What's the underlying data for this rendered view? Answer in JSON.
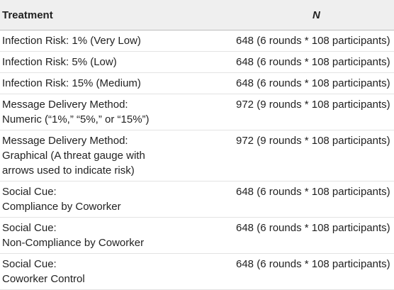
{
  "table": {
    "header": [
      "Treatment",
      "N"
    ],
    "rows": [
      {
        "treatment": [
          "Infection Risk: 1% (Very Low)"
        ],
        "n": "648 (6 rounds * 108 participants)"
      },
      {
        "treatment": [
          "Infection Risk: 5% (Low)"
        ],
        "n": "648 (6 rounds * 108 participants)"
      },
      {
        "treatment": [
          "Infection Risk: 15% (Medium)"
        ],
        "n": "648 (6 rounds * 108 participants)"
      },
      {
        "treatment": [
          "Message Delivery Method:",
          "Numeric (“1%,” “5%,” or “15%”)"
        ],
        "n": "972 (9 rounds * 108 participants)"
      },
      {
        "treatment": [
          "Message Delivery Method:",
          "Graphical (A threat gauge with",
          "arrows used to indicate risk)"
        ],
        "n": "972 (9 rounds * 108 participants)"
      },
      {
        "treatment": [
          "Social Cue:",
          "Compliance by Coworker"
        ],
        "n": "648 (6 rounds * 108 participants)"
      },
      {
        "treatment": [
          "Social Cue:",
          "Non-Compliance by Coworker"
        ],
        "n": "648 (6 rounds * 108 participants)"
      },
      {
        "treatment": [
          "Social Cue:",
          "Coworker Control"
        ],
        "n": "648 (6 rounds * 108 participants)"
      }
    ]
  }
}
